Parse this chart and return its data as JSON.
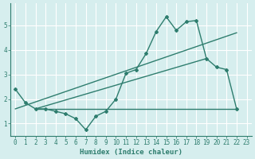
{
  "xlabel": "Humidex (Indice chaleur)",
  "background_color": "#d6eeee",
  "grid_color": "#ffffff",
  "line_color": "#2e7d6e",
  "xlim": [
    -0.5,
    23.5
  ],
  "ylim": [
    0.5,
    5.9
  ],
  "yticks": [
    1,
    2,
    3,
    4,
    5
  ],
  "xticks": [
    0,
    1,
    2,
    3,
    4,
    5,
    6,
    7,
    8,
    9,
    10,
    11,
    12,
    13,
    14,
    15,
    16,
    17,
    18,
    19,
    20,
    21,
    22,
    23
  ],
  "curve1_x": [
    0,
    1,
    2,
    3,
    4,
    5,
    6,
    7,
    8,
    9,
    10,
    11,
    12,
    13,
    14,
    15,
    16,
    17,
    18,
    19,
    20,
    21,
    22
  ],
  "curve1_y": [
    2.4,
    1.85,
    1.6,
    1.6,
    1.5,
    1.4,
    1.2,
    0.75,
    1.3,
    1.5,
    2.0,
    3.05,
    3.2,
    3.85,
    4.75,
    5.35,
    4.8,
    5.15,
    5.2,
    3.65,
    3.3,
    3.2,
    1.6
  ],
  "flat_line_x": [
    2,
    22
  ],
  "flat_line_y": [
    1.6,
    1.6
  ],
  "line1_x": [
    0,
    22
  ],
  "line1_y": [
    1.6,
    4.7
  ],
  "line2_x": [
    2,
    19
  ],
  "line2_y": [
    1.6,
    3.65
  ]
}
